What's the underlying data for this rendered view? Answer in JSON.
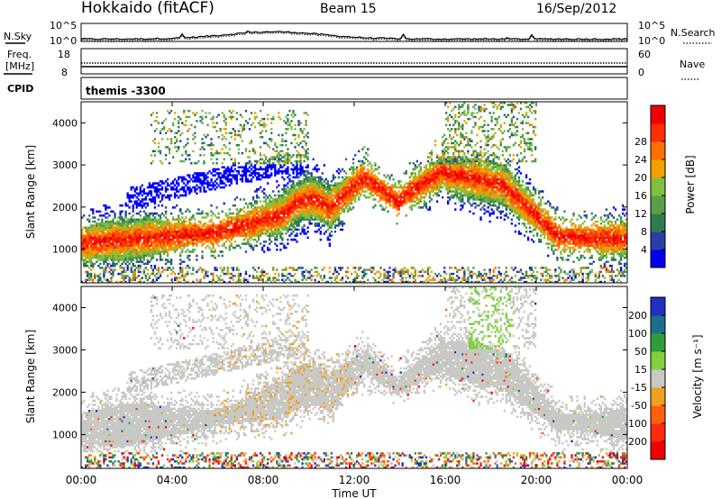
{
  "header": {
    "station": "Hokkaido (fitACF)",
    "beam": "Beam 15",
    "date": "16/Sep/2012"
  },
  "top_panel": {
    "left_label": "N.Sky",
    "right_label": "N.Search",
    "y_ticks": [
      "10^5",
      "10^0"
    ]
  },
  "freq_panel": {
    "left_label_1": "Freq.",
    "left_label_2": "[MHz]",
    "right_label": "Nave",
    "left_ticks": [
      "18",
      "8"
    ],
    "right_ticks": [
      "60",
      "0"
    ]
  },
  "cpid_panel": {
    "label": "CPID",
    "value": "themis -3300"
  },
  "colors": {
    "power": [
      "#0000ee",
      "#2a3fa6",
      "#2e7d50",
      "#5c9e4a",
      "#80c040",
      "#f0a000",
      "#ff7000",
      "#ff3000",
      "#ee0000"
    ],
    "velocity": [
      "#2030c0",
      "#1c6e8c",
      "#2e9e3a",
      "#80d040",
      "#c8c8c4",
      "#f0a020",
      "#ff6010",
      "#ff2a10",
      "#ee0000"
    ]
  },
  "chart_data": [
    {
      "type": "heatmap",
      "quantity": "power",
      "ylabel": "Slant Range [km]",
      "y_ticks": [
        "1000",
        "2000",
        "3000",
        "4000"
      ],
      "ylim": [
        200,
        4500
      ],
      "xlim": [
        0,
        24
      ],
      "colorbar_label": "Power [dB]",
      "colorbar_ticks": [
        "4",
        "8",
        "12",
        "16",
        "20",
        "24",
        "28"
      ],
      "colorbar_range": [
        0,
        32
      ]
    },
    {
      "type": "heatmap",
      "quantity": "velocity",
      "ylabel": "Slant Range [km]",
      "y_ticks": [
        "1000",
        "2000",
        "3000",
        "4000"
      ],
      "ylim": [
        200,
        4500
      ],
      "xlim": [
        0,
        24
      ],
      "xlabel": "Time UT",
      "x_ticks": [
        "00:00",
        "04:00",
        "08:00",
        "12:00",
        "16:00",
        "20:00",
        "00:00"
      ],
      "colorbar_label": "Velocity [m s⁻¹]",
      "colorbar_ticks": [
        "200",
        "100",
        "50",
        "15",
        "-15",
        "-50",
        "-100",
        "-200"
      ]
    }
  ]
}
